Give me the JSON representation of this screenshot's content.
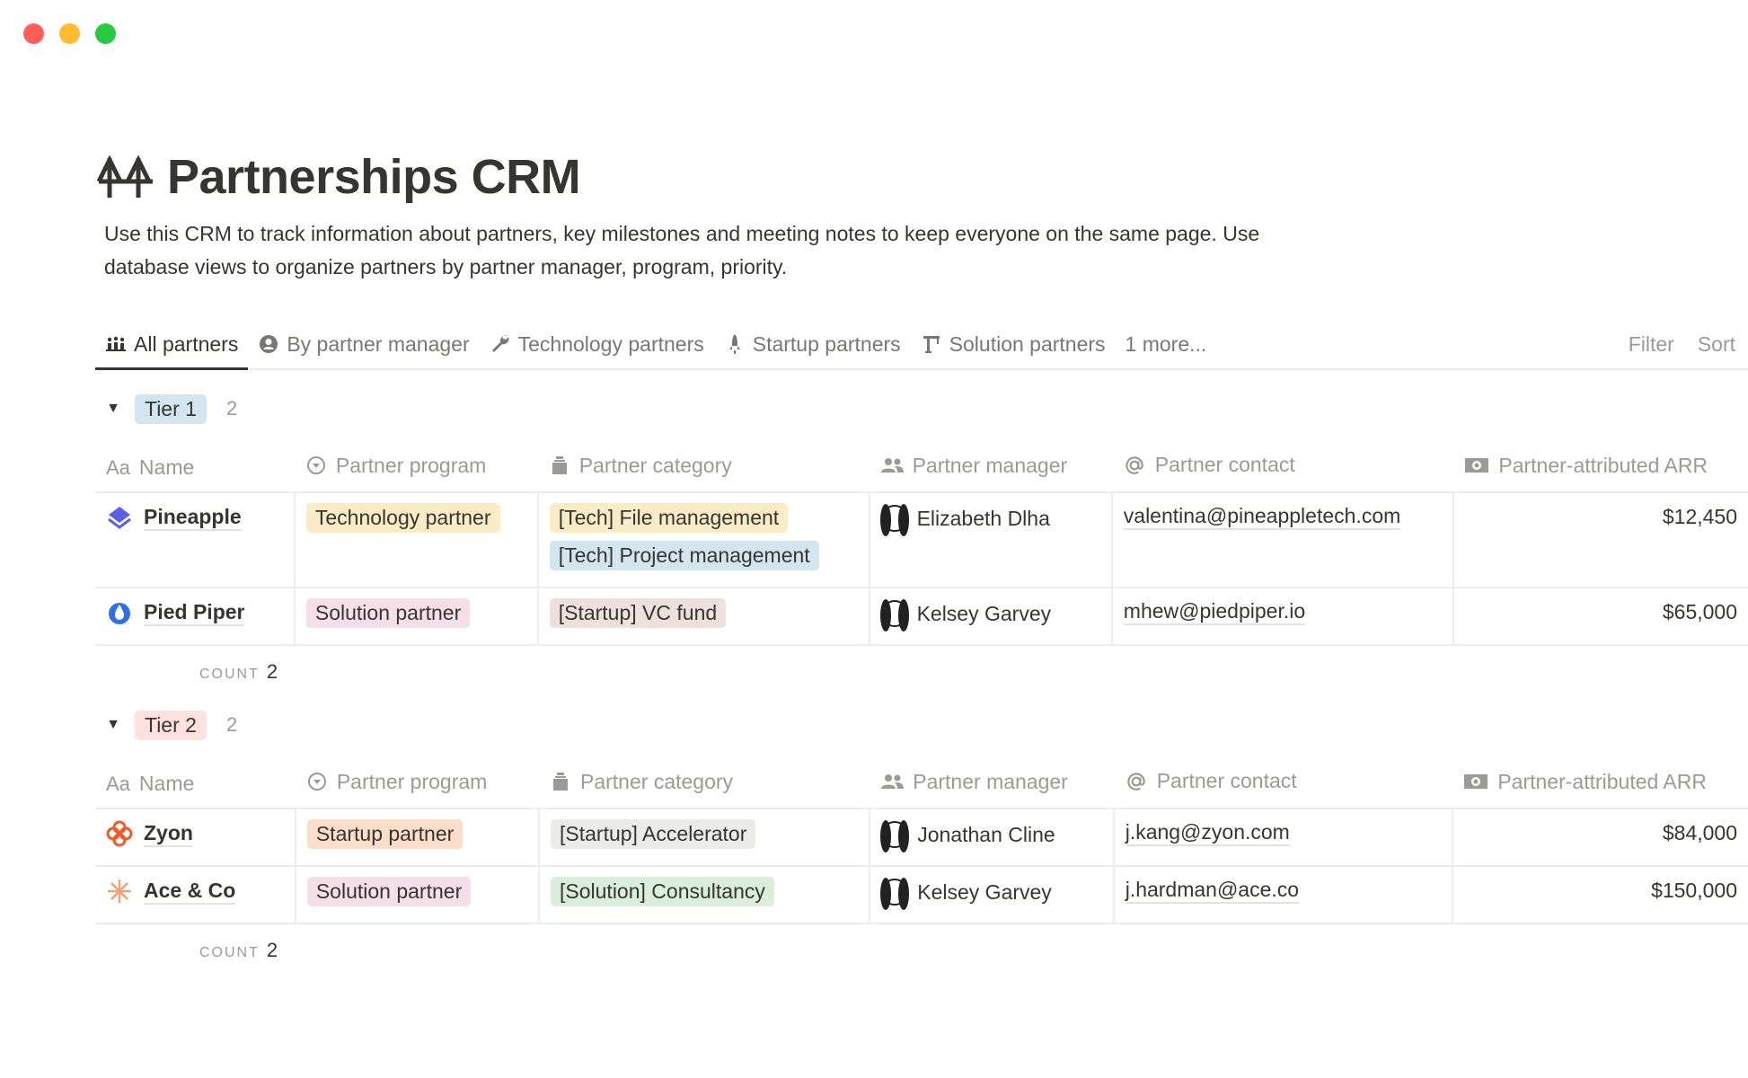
{
  "window": {
    "traffic_lights": {
      "close": "#ff5f57",
      "minimize": "#febc2e",
      "maximize": "#28c840"
    }
  },
  "page": {
    "icon": "bridge-icon",
    "title": "Partnerships CRM",
    "description": "Use this CRM to track information about partners, key milestones and meeting notes to keep everyone on the same page. Use database views to organize partners by partner manager, program, priority."
  },
  "tabs": [
    {
      "label": "All partners",
      "icon": "people-icon",
      "active": true
    },
    {
      "label": "By partner manager",
      "icon": "user-circle-icon"
    },
    {
      "label": "Technology partners",
      "icon": "wrench-icon"
    },
    {
      "label": "Startup partners",
      "icon": "rocket-icon"
    },
    {
      "label": "Solution partners",
      "icon": "crane-icon"
    },
    {
      "label": "1 more...",
      "icon": ""
    }
  ],
  "toolbar": {
    "filter": "Filter",
    "sort": "Sort"
  },
  "columns": [
    {
      "label": "Name",
      "icon": "Aa"
    },
    {
      "label": "Partner program",
      "icon": "select-icon"
    },
    {
      "label": "Partner category",
      "icon": "multi-select-icon"
    },
    {
      "label": "Partner manager",
      "icon": "person-icon"
    },
    {
      "label": "Partner contact",
      "icon": "at-icon"
    },
    {
      "label": "Partner-attributed ARR",
      "icon": "money-icon"
    }
  ],
  "count_label": "COUNT",
  "groups": [
    {
      "label": "Tier 1",
      "color": "#d3e5ef",
      "count": "2",
      "footer_count": "2",
      "rows": [
        {
          "name": "Pineapple",
          "icon_color": "#5b5fe6",
          "program": {
            "label": "Technology partner",
            "color": "#fbecc8"
          },
          "categories": [
            {
              "label": "[Tech] File management",
              "color": "#fbecc8"
            },
            {
              "label": "[Tech] Project management",
              "color": "#d3e5ef"
            }
          ],
          "manager": "Elizabeth Dlha",
          "contact": "valentina@pineappletech.com",
          "arr": "$12,450"
        },
        {
          "name": "Pied Piper",
          "icon_color": "#2f6fe8",
          "program": {
            "label": "Solution partner",
            "color": "#f5e0e9"
          },
          "categories": [
            {
              "label": "[Startup] VC fund",
              "color": "#eee0da"
            }
          ],
          "manager": "Kelsey Garvey",
          "contact": "mhew@piedpiper.io",
          "arr": "$65,000"
        }
      ]
    },
    {
      "label": "Tier 2",
      "color": "#ffe2dd",
      "count": "2",
      "footer_count": "2",
      "rows": [
        {
          "name": "Zyon",
          "icon_color": "#f05a28",
          "program": {
            "label": "Startup partner",
            "color": "#fadec9"
          },
          "categories": [
            {
              "label": "[Startup] Accelerator",
              "color": "#ebebea"
            }
          ],
          "manager": "Jonathan Cline",
          "contact": "j.kang@zyon.com",
          "arr": "$84,000"
        },
        {
          "name": "Ace & Co",
          "icon_color": "#f4a07a",
          "program": {
            "label": "Solution partner",
            "color": "#f5e0e9"
          },
          "categories": [
            {
              "label": "[Solution] Consultancy",
              "color": "#dbeddb"
            }
          ],
          "manager": "Kelsey Garvey",
          "contact": "j.hardman@ace.co",
          "arr": "$150,000"
        }
      ]
    }
  ]
}
